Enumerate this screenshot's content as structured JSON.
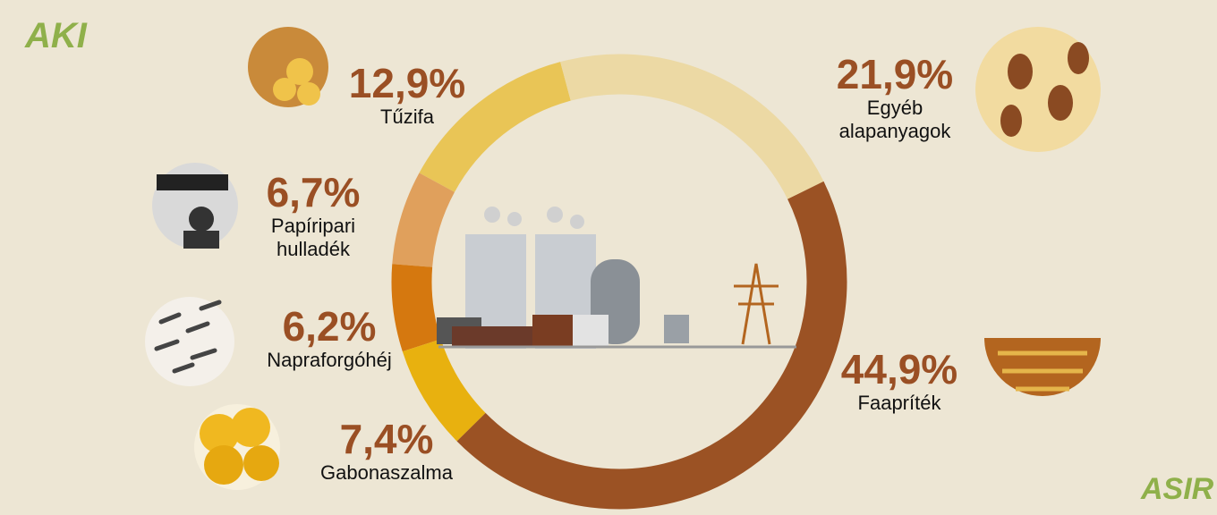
{
  "chart_data": {
    "type": "pie",
    "categories": [
      "Egyéb alapanyagok",
      "Faapríték",
      "Gabonaszalma",
      "Napraforgóhéj",
      "Papíripari hulladék",
      "Tűzifa"
    ],
    "values": [
      21.9,
      44.9,
      7.4,
      6.2,
      6.7,
      12.9
    ],
    "value_labels": [
      "21,9%",
      "44,9%",
      "7,4%",
      "6,2%",
      "6,7%",
      "12,9%"
    ],
    "colors": [
      "#ecd9a4",
      "#9b5224",
      "#e8b10f",
      "#d5780f",
      "#e0a05c",
      "#e9c556"
    ],
    "donut": true
  },
  "logos": {
    "top_left": "AKI",
    "bottom_right": "ASIR"
  }
}
